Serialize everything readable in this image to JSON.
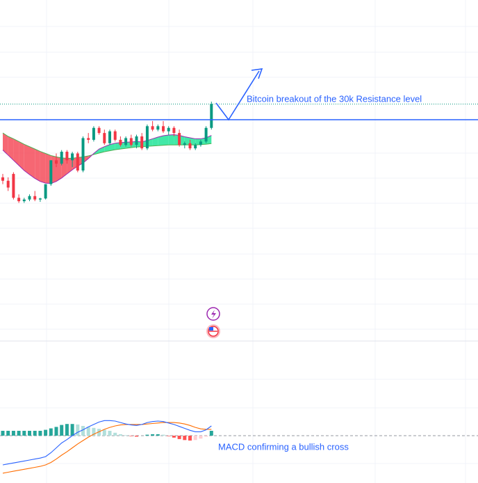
{
  "chart_data": {
    "type": "candlestick",
    "annotations": [
      "Bitcoin breakout of the 30k Resistance level",
      "MACD confirming a bullish cross"
    ],
    "ylim": [
      0,
      100
    ],
    "open": [
      48,
      47,
      49,
      42,
      41,
      41.5,
      42.5,
      41.5,
      41.8,
      46,
      53,
      52,
      55.5,
      53,
      55,
      50,
      59.5,
      59,
      62.5,
      61,
      58,
      61.5,
      59,
      57.5,
      59.5,
      57.5,
      60,
      56.5,
      63,
      62,
      63,
      61.5,
      62.5,
      61,
      57.5,
      58,
      56.5,
      57.5,
      58.5,
      62.5
    ],
    "high": [
      49,
      48,
      49.5,
      43,
      42,
      43,
      44,
      42,
      46,
      53,
      55,
      56,
      56,
      55.5,
      55.5,
      60,
      61,
      63,
      63,
      62,
      62,
      62,
      60,
      60,
      60.5,
      60.5,
      61,
      63.5,
      64.5,
      63.5,
      64.5,
      63,
      63,
      62,
      58.5,
      59,
      58,
      59,
      63,
      70.2
    ],
    "low": [
      46,
      44,
      41.5,
      40.5,
      40.5,
      41,
      41,
      40.8,
      41.5,
      45.5,
      51,
      51.5,
      52,
      51,
      49.5,
      49.5,
      58,
      58.5,
      60.5,
      57.5,
      57.5,
      58.5,
      57,
      57,
      57,
      56.5,
      56,
      56,
      61.5,
      61.5,
      61,
      60.5,
      60,
      57,
      56.5,
      56,
      56,
      57,
      58,
      62
    ],
    "close": [
      47,
      45,
      42,
      41,
      41.5,
      42.5,
      41.5,
      41.8,
      46,
      53,
      52,
      55.5,
      53,
      55,
      50,
      59.5,
      59,
      62.5,
      61,
      58,
      61.5,
      59,
      57.5,
      59.5,
      57.5,
      60,
      56.5,
      63,
      62,
      63,
      61.5,
      62.5,
      61,
      57.5,
      58,
      56.5,
      57.5,
      58.5,
      62.5,
      69.5
    ],
    "up_color": "#089981",
    "down_color": "#f23645",
    "ma_fast": [
      56,
      54.5,
      53,
      51.5,
      50,
      48.8,
      47.7,
      46.8,
      46.3,
      46.2,
      46.8,
      47.8,
      49,
      50.2,
      51.3,
      52.2,
      53.5,
      55,
      56.3,
      57,
      57.6,
      58,
      58.2,
      58.3,
      58.4,
      58.5,
      58.4,
      58.8,
      59.3,
      59.8,
      60.2,
      60.4,
      60.5,
      60.3,
      59.9,
      59.6,
      59.3,
      59.3,
      59.6,
      60.3
    ],
    "ma_slow": [
      61,
      60,
      59.3,
      58.5,
      57.7,
      57,
      56.3,
      55.6,
      55,
      54.4,
      54,
      53.7,
      53.6,
      53.6,
      53.8,
      54,
      54.3,
      54.7,
      55.1,
      55.5,
      55.8,
      56.1,
      56.3,
      56.5,
      56.7,
      56.9,
      57,
      57.1,
      57.2,
      57.3,
      57.4,
      57.5,
      57.5,
      57.5,
      57.5,
      57.5,
      57.5,
      57.6,
      57.7,
      57.9
    ],
    "resistance": 64.9,
    "line_color": "#2962ff",
    "macd_panel": {
      "ylim": [
        -10,
        10
      ],
      "macd": [
        -6,
        -5.8,
        -5.6,
        -5.4,
        -5.2,
        -5,
        -4.8,
        -4.6,
        -4.3,
        -3.5,
        -2.5,
        -1.5,
        -0.8,
        0,
        0.7,
        1.2,
        1.8,
        2.3,
        2.8,
        3.1,
        3.1,
        3,
        2.7,
        2.4,
        2.2,
        2.1,
        2.3,
        2.7,
        2.9,
        3,
        2.9,
        2.6,
        2.3,
        1.9,
        1.5,
        1.1,
        0.8,
        0.8,
        1.2,
        2
      ],
      "signal": [
        -7.7,
        -7.5,
        -7.3,
        -7.1,
        -6.9,
        -6.7,
        -6.5,
        -6.3,
        -6,
        -5.5,
        -4.8,
        -4,
        -3.3,
        -2.5,
        -1.7,
        -1,
        -0.3,
        0.3,
        0.8,
        1.3,
        1.7,
        2,
        2.2,
        2.3,
        2.3,
        2.3,
        2.3,
        2.4,
        2.5,
        2.6,
        2.7,
        2.7,
        2.7,
        2.6,
        2.4,
        2.1,
        1.7,
        1.4,
        1.3,
        1.3
      ],
      "histogram": [
        1,
        1,
        1,
        1,
        1,
        1,
        1,
        1,
        1.2,
        1.5,
        1.8,
        2.2,
        2.4,
        2.4,
        2.3,
        2,
        1.8,
        1.6,
        1.4,
        1.2,
        1,
        0.6,
        0.3,
        0.1,
        -0.1,
        -0.2,
        0,
        0.2,
        0.3,
        0.3,
        0.2,
        -0.1,
        -0.4,
        -0.7,
        -0.9,
        -1,
        -0.9,
        -0.6,
        -0.2,
        1
      ],
      "macd_color": "#2962ff",
      "signal_color": "#ff6d00"
    }
  }
}
